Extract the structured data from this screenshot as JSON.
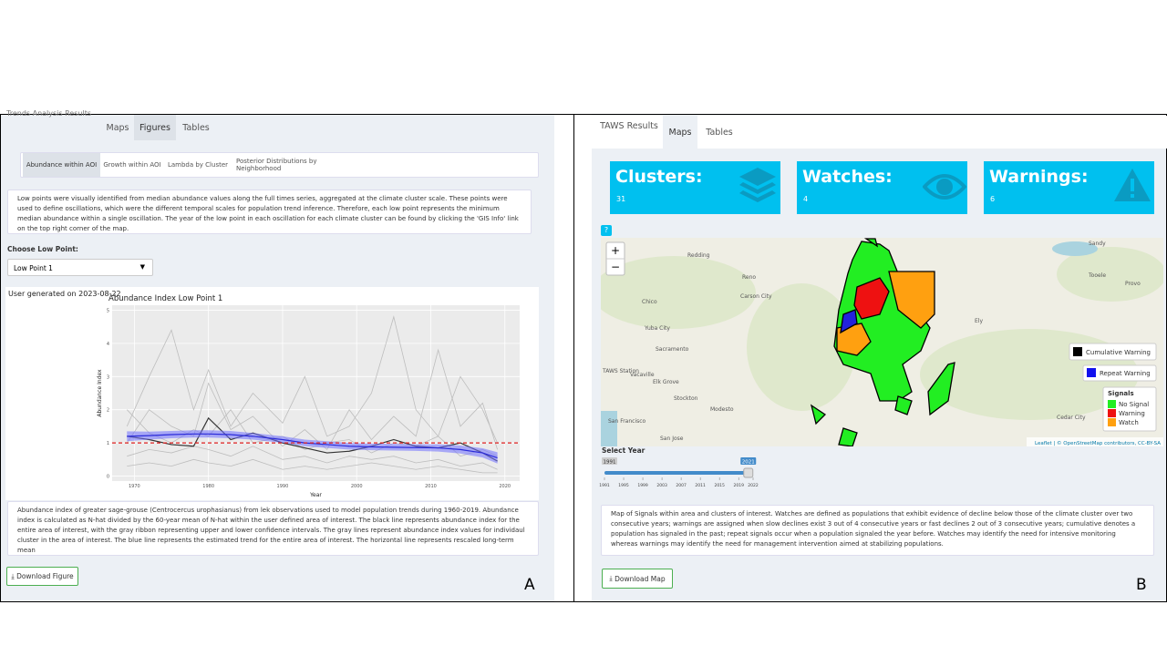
{
  "panel_a": {
    "label": "A",
    "tabs": [
      "Trends Analysis Results",
      "Maps",
      "Figures",
      "Tables"
    ],
    "subtabs": [
      "Abundance within AOI",
      "Growth within AOI",
      "Lambda by Cluster",
      "Posterior Distributions by Neighborhood"
    ],
    "description": "Low points were visually identified from median abundance values along the full times series, aggregated at the climate cluster scale. These points were used to define oscillations, which were the different temporal scales for population trend inference. Therefore, each low point represents the minimum median abundance within a single oscillation. The year of the low point in each oscillation for each climate cluster can be found by clicking the 'GIS Info' link on the top right corner of the map.",
    "select_label": "Choose Low Point:",
    "select_value": "Low Point 1",
    "generated": "User generated on 2023-08-22",
    "caption": "Abundance index of greater sage-grouse (Centrocercus urophasianus) from lek observations used to model population trends during 1960-2019. Abundance index is calculated as N-hat divided by the 60-year mean of N-hat within the user defined area of interest. The black line represents abundance index for the entire area of interest, with the gray ribbon representing upper and lower confidence intervals. The gray lines represent abundance index values for individaul cluster in the area of interest. The blue line represents the estimated trend for the entire area of interest. The horizontal line represents rescaled long-term mean",
    "button": "Download Figure"
  },
  "chart_data": {
    "type": "line",
    "title": "Abundance Index Low Point 1",
    "x_label": "Year",
    "y_label": "Abundance Index",
    "x": [
      1969,
      1972,
      1975,
      1978,
      1980,
      1983,
      1986,
      1990,
      1993,
      1996,
      1999,
      2002,
      2005,
      2008,
      2011,
      2014,
      2017,
      2019
    ],
    "series": [
      {
        "color": "#bdbdbd",
        "values": [
          1.5,
          3.0,
          4.4,
          2.0,
          3.2,
          1.5,
          2.5,
          1.6,
          3.0,
          1.2,
          1.5,
          2.5,
          4.8,
          2.0,
          1.2,
          3.0,
          2.0,
          1.0
        ]
      },
      {
        "color": "#bdbdbd",
        "values": [
          1.0,
          2.0,
          1.5,
          1.2,
          2.8,
          1.4,
          1.8,
          0.9,
          1.4,
          0.8,
          2.0,
          1.1,
          1.8,
          1.2,
          3.8,
          1.5,
          2.2,
          0.8
        ]
      },
      {
        "color": "#bdbdbd",
        "values": [
          0.3,
          0.4,
          0.3,
          0.5,
          0.4,
          0.3,
          0.5,
          0.2,
          0.3,
          0.2,
          0.3,
          0.4,
          0.3,
          0.2,
          0.3,
          0.2,
          0.1,
          0.1
        ]
      },
      {
        "color": "#bdbdbd",
        "values": [
          2.0,
          1.3,
          1.0,
          1.4,
          1.2,
          2.0,
          1.0,
          1.2,
          0.8,
          1.0,
          1.1,
          0.7,
          1.0,
          0.9,
          1.2,
          0.6,
          0.8,
          0.6
        ]
      },
      {
        "color": "#bdbdbd",
        "values": [
          0.6,
          0.8,
          0.7,
          0.9,
          0.8,
          0.6,
          0.9,
          0.5,
          0.6,
          0.4,
          0.6,
          0.5,
          0.6,
          0.4,
          0.5,
          0.3,
          0.4,
          0.2
        ]
      },
      {
        "color": "#333333",
        "values": [
          1.2,
          1.1,
          0.95,
          0.9,
          1.75,
          1.1,
          1.3,
          1.0,
          0.85,
          0.7,
          0.75,
          0.9,
          1.1,
          0.9,
          0.85,
          1.0,
          0.7,
          0.45
        ]
      },
      {
        "color": "#2b2bd9",
        "values": [
          1.2,
          1.22,
          1.25,
          1.27,
          1.27,
          1.25,
          1.2,
          1.1,
          1.0,
          0.95,
          0.9,
          0.88,
          0.87,
          0.86,
          0.85,
          0.8,
          0.7,
          0.55
        ]
      }
    ],
    "band": {
      "color": "#6f6fff",
      "lower": [
        1.05,
        1.1,
        1.14,
        1.16,
        1.16,
        1.14,
        1.1,
        1.0,
        0.9,
        0.85,
        0.8,
        0.78,
        0.77,
        0.76,
        0.74,
        0.68,
        0.56,
        0.38
      ],
      "upper": [
        1.35,
        1.34,
        1.36,
        1.38,
        1.38,
        1.36,
        1.3,
        1.2,
        1.1,
        1.05,
        1.0,
        0.98,
        0.97,
        0.96,
        0.96,
        0.92,
        0.84,
        0.72
      ]
    },
    "hline": 1,
    "hline_color": "#e02020",
    "xlim": [
      1967,
      2022
    ],
    "ylim": [
      -0.15,
      5.15
    ],
    "xticks": [
      1970,
      1980,
      1990,
      2000,
      2010,
      2020
    ],
    "yticks": [
      0,
      1,
      2,
      3,
      4,
      5
    ],
    "grid": true
  },
  "panel_b": {
    "label": "B",
    "tabs": [
      "TAWS Results",
      "Maps",
      "Tables"
    ],
    "value_boxes": [
      {
        "title": "Clusters:",
        "value": 31
      },
      {
        "title": "Watches:",
        "value": 4
      },
      {
        "title": "Warnings:",
        "value": 6
      }
    ],
    "help": "?",
    "map": {
      "zoom": [
        "+",
        "−"
      ],
      "places": [
        "Redding",
        "Chico",
        "Reno",
        "Carson City",
        "Yuba City",
        "Sacramento",
        "Vacaville",
        "Elk Grove",
        "Stockton",
        "Modesto",
        "San Francisco",
        "San Jose",
        "TAWS Station",
        "Ely",
        "Sandy",
        "Tooele",
        "Provo",
        "Cedar City"
      ],
      "legend_cumulative": "Cumulative Warning",
      "legend_repeat": "Repeat Warning",
      "signals_title": "Signals",
      "signals": [
        {
          "name": "No Signal",
          "color": "#22ee22"
        },
        {
          "name": "Warning",
          "color": "#ee1111"
        },
        {
          "name": "Watch",
          "color": "#ffa010"
        }
      ],
      "attribution": "Leaflet | © OpenStreetMap contributors, CC-BY-SA"
    },
    "slider": {
      "label": "Select Year",
      "min": 1991,
      "max": 2022,
      "value": 2021,
      "ticks": [
        1991,
        1995,
        1999,
        2003,
        2007,
        2011,
        2015,
        2019,
        2022
      ]
    },
    "description": "Map of Signals within area and clusters of interest. Watches are defined as populations that exhibit evidence of decline below those of the climate cluster over two consecutive years; warnings are assigned when slow declines exist 3 out of 4 consecutive years or fast declines 2 out of 3 consecutive years; cumulative denotes a population has signaled in the past; repeat signals occur when a population signaled the year before. Watches may identify the need for intensive monitoring whereas warnings may identify the need for management intervention aimed at stabilizing populations.",
    "button": "Download Map"
  }
}
